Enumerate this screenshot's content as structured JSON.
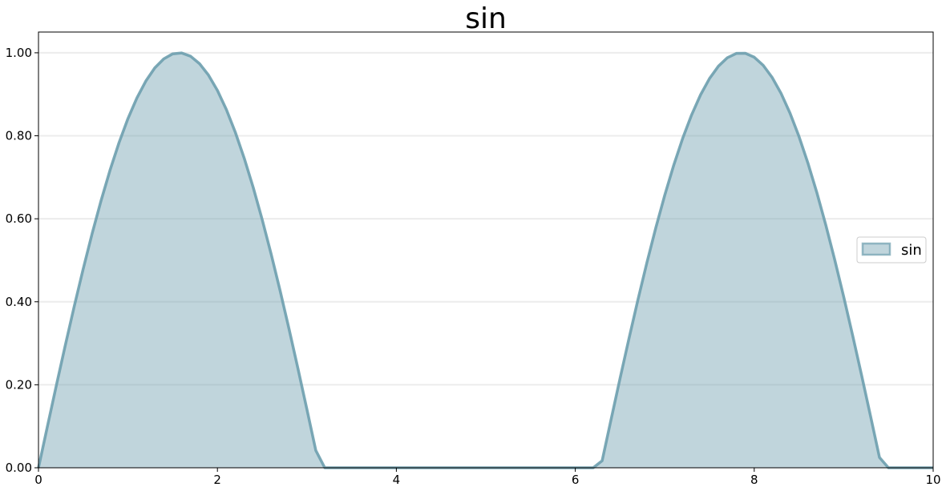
{
  "chart_data": {
    "type": "area",
    "title": "sin",
    "xlabel": "",
    "ylabel": "",
    "xlim": [
      0,
      10
    ],
    "ylim": [
      0,
      1.05
    ],
    "xticks": [
      0,
      2,
      4,
      6,
      8,
      10
    ],
    "xtick_labels": [
      "0",
      "2",
      "4",
      "6",
      "8",
      "10"
    ],
    "yticks": [
      0,
      0.2,
      0.4,
      0.6,
      0.8,
      1.0
    ],
    "ytick_labels": [
      "0.00",
      "0.20",
      "0.40",
      "0.60",
      "0.80",
      "1.00"
    ],
    "grid": "y",
    "legend_position": "right",
    "series": [
      {
        "name": "sin",
        "color": "#6d9eae",
        "x": [
          0.0,
          0.1,
          0.2,
          0.3,
          0.4,
          0.5,
          0.6,
          0.7,
          0.8,
          0.9,
          1.0,
          1.1,
          1.2,
          1.3,
          1.4,
          1.5,
          1.6,
          1.7,
          1.8,
          1.9,
          2.0,
          2.1,
          2.2,
          2.3,
          2.4,
          2.5,
          2.6,
          2.7,
          2.8,
          2.9,
          3.0,
          3.1,
          3.2,
          3.3,
          3.4,
          3.5,
          3.6,
          3.7,
          3.8,
          3.9,
          4.0,
          4.1,
          4.2,
          4.3,
          4.4,
          4.5,
          4.6,
          4.7,
          4.8,
          4.9,
          5.0,
          5.1,
          5.2,
          5.3,
          5.4,
          5.5,
          5.6,
          5.7,
          5.8,
          5.9,
          6.0,
          6.1,
          6.2,
          6.3,
          6.4,
          6.5,
          6.6,
          6.7,
          6.8,
          6.9,
          7.0,
          7.1,
          7.2,
          7.3,
          7.4,
          7.5,
          7.6,
          7.7,
          7.8,
          7.9,
          8.0,
          8.1,
          8.2,
          8.3,
          8.4,
          8.5,
          8.6,
          8.7,
          8.8,
          8.9,
          9.0,
          9.1,
          9.2,
          9.3,
          9.4,
          9.5,
          9.6,
          9.7,
          9.8,
          9.9,
          10.0
        ],
        "values": [
          0.0,
          0.0998,
          0.1987,
          0.2955,
          0.3894,
          0.4794,
          0.5646,
          0.6442,
          0.7174,
          0.7833,
          0.8415,
          0.8912,
          0.932,
          0.9636,
          0.9854,
          0.9975,
          0.9996,
          0.9917,
          0.9738,
          0.9463,
          0.9093,
          0.8632,
          0.8085,
          0.7457,
          0.6755,
          0.5985,
          0.5155,
          0.4274,
          0.335,
          0.2392,
          0.1411,
          0.0416,
          0.0,
          0.0,
          0.0,
          0.0,
          0.0,
          0.0,
          0.0,
          0.0,
          0.0,
          0.0,
          0.0,
          0.0,
          0.0,
          0.0,
          0.0,
          0.0,
          0.0,
          0.0,
          0.0,
          0.0,
          0.0,
          0.0,
          0.0,
          0.0,
          0.0,
          0.0,
          0.0,
          0.0,
          0.0,
          0.0,
          0.0,
          0.0168,
          0.1165,
          0.2151,
          0.3115,
          0.4048,
          0.4941,
          0.5784,
          0.657,
          0.729,
          0.7937,
          0.8504,
          0.8987,
          0.938,
          0.9679,
          0.9882,
          0.9985,
          0.9989,
          0.9894,
          0.9699,
          0.9407,
          0.9022,
          0.8546,
          0.7985,
          0.7344,
          0.663,
          0.585,
          0.501,
          0.4121,
          0.319,
          0.2229,
          0.1245,
          0.0248,
          0.0,
          0.0,
          0.0,
          0.0,
          0.0,
          0.0
        ]
      }
    ]
  }
}
